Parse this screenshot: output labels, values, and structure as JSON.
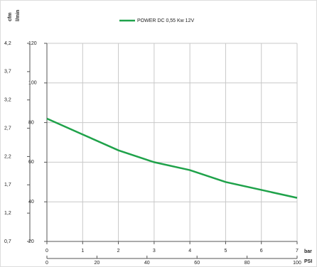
{
  "chart_data": {
    "type": "line",
    "x": [
      0,
      1,
      2,
      3,
      4,
      5,
      6,
      7
    ],
    "series": [
      {
        "name": "POWER DC 0,55 Kw 12V",
        "color": "#1fa24a",
        "values": [
          82,
          74,
          66,
          60,
          56,
          50,
          46,
          42
        ]
      }
    ],
    "xlim": [
      0,
      7
    ],
    "xticks": [
      0,
      1,
      2,
      3,
      4,
      5,
      6,
      7
    ],
    "x_label": "bar",
    "x2lim": [
      0,
      100
    ],
    "x2ticks": [
      0,
      20,
      40,
      60,
      80,
      100
    ],
    "x2_label": "PSI",
    "ylim": [
      20,
      120
    ],
    "yticks": [
      20,
      40,
      60,
      80,
      100,
      120
    ],
    "y_label": "l/min",
    "y2lim": [
      0.7,
      4.2
    ],
    "y2ticks": [
      {
        "value": 0.7,
        "label": "0,7"
      },
      {
        "value": 1.2,
        "label": "1,2"
      },
      {
        "value": 1.7,
        "label": "1,7"
      },
      {
        "value": 2.2,
        "label": "2,2"
      },
      {
        "value": 2.7,
        "label": "2,7"
      },
      {
        "value": 3.2,
        "label": "3,2"
      },
      {
        "value": 3.7,
        "label": "3,7"
      },
      {
        "value": 4.2,
        "label": "4,2"
      }
    ],
    "y2_label": "cfm",
    "grid": true
  }
}
